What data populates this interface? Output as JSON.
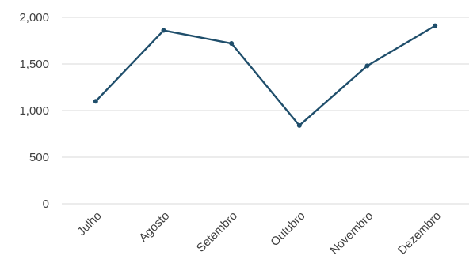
{
  "chart_data": {
    "type": "line",
    "title": "",
    "xlabel": "",
    "ylabel": "",
    "categories": [
      "Julho",
      "Agosto",
      "Setembro",
      "Outubro",
      "Novembro",
      "Dezembro"
    ],
    "series": [
      {
        "values": [
          1100,
          1860,
          1720,
          840,
          1480,
          1910
        ],
        "color": "#1f4e6b"
      }
    ],
    "ylim": [
      0,
      2000
    ],
    "yticks": [
      0,
      500,
      1000,
      1500,
      2000
    ],
    "ytick_labels": [
      "0",
      "500",
      "1,000",
      "1,500",
      "2,000"
    ],
    "grid": true,
    "legend": "none",
    "colors": {
      "grid": "#d9d9d9",
      "text": "#404040",
      "series": "#1f4e6b"
    }
  }
}
